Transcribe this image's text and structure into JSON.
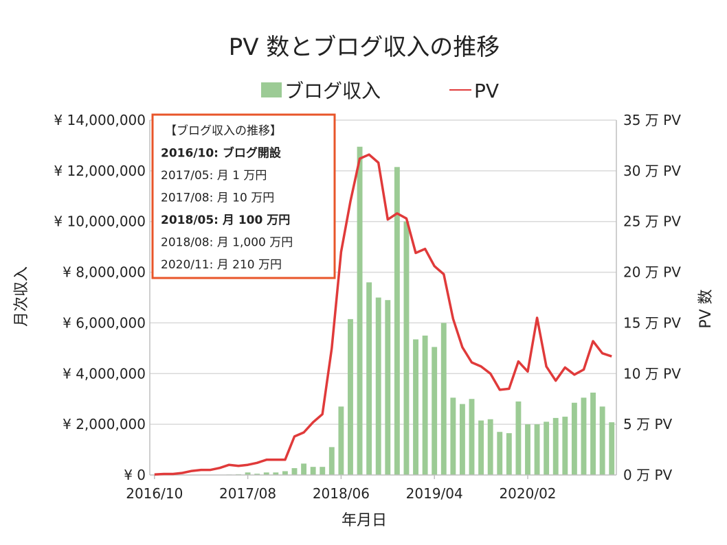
{
  "chart_data": {
    "type": "bar",
    "title": "PV 数とブログ収入の推移",
    "xlabel": "年月日",
    "ylabel_left": "月次収入",
    "ylabel_right": "PV 数",
    "ylim_left": [
      0,
      14000000
    ],
    "ylim_right": [
      0,
      35
    ],
    "grid": true,
    "legend_position": "top",
    "x_tick_labels": [
      "2016/10",
      "2017/08",
      "2018/06",
      "2019/04",
      "2020/02"
    ],
    "x_tick_indices": [
      0,
      10,
      20,
      30,
      40
    ],
    "y_left_ticks": [
      {
        "value": 0,
        "label": "¥ 0"
      },
      {
        "value": 2000000,
        "label": "¥ 2,000,000"
      },
      {
        "value": 4000000,
        "label": "¥ 4,000,000"
      },
      {
        "value": 6000000,
        "label": "¥ 6,000,000"
      },
      {
        "value": 8000000,
        "label": "¥ 8,000,000"
      },
      {
        "value": 10000000,
        "label": "¥ 10,000,000"
      },
      {
        "value": 12000000,
        "label": "¥ 12,000,000"
      },
      {
        "value": 14000000,
        "label": "¥ 14,000,000"
      }
    ],
    "y_right_ticks": [
      {
        "value": 0,
        "label": "0 万 PV"
      },
      {
        "value": 5,
        "label": "5 万 PV"
      },
      {
        "value": 10,
        "label": "10 万 PV"
      },
      {
        "value": 15,
        "label": "15 万 PV"
      },
      {
        "value": 20,
        "label": "20 万 PV"
      },
      {
        "value": 25,
        "label": "25 万 PV"
      },
      {
        "value": 30,
        "label": "30 万 PV"
      },
      {
        "value": 35,
        "label": "35 万 PV"
      }
    ],
    "series": [
      {
        "name": "ブログ収入",
        "type": "bar",
        "axis": "left",
        "color": "#9ccb95",
        "values": [
          0,
          0,
          0,
          0,
          0,
          0,
          0,
          10000,
          20000,
          30000,
          100000,
          50000,
          100000,
          100000,
          150000,
          270000,
          450000,
          320000,
          320000,
          1100000,
          2700000,
          6150000,
          12950000,
          7600000,
          7000000,
          6900000,
          12150000,
          10000000,
          5350000,
          5500000,
          5050000,
          6000000,
          3050000,
          2800000,
          3000000,
          2150000,
          2200000,
          1700000,
          1650000,
          2900000,
          2000000,
          2000000,
          2100000,
          2250000,
          2300000,
          2850000,
          3050000,
          3250000,
          2700000,
          2080000
        ]
      },
      {
        "name": "PV",
        "type": "line",
        "axis": "right",
        "color": "#e03a3a",
        "values": [
          0.05,
          0.1,
          0.1,
          0.2,
          0.4,
          0.5,
          0.5,
          0.7,
          1.0,
          0.9,
          1.0,
          1.2,
          1.5,
          1.5,
          1.5,
          3.8,
          4.2,
          5.2,
          6.0,
          12.5,
          22.0,
          27.0,
          31.2,
          31.6,
          30.8,
          25.2,
          25.8,
          25.3,
          21.9,
          22.3,
          20.6,
          19.8,
          15.4,
          12.6,
          11.1,
          10.7,
          10.0,
          8.4,
          8.5,
          11.2,
          10.2,
          15.5,
          10.7,
          9.3,
          10.6,
          9.9,
          10.4,
          13.2,
          12.0,
          11.7
        ]
      }
    ],
    "annotation_box": {
      "lines": [
        {
          "text": "【ブログ収入の推移】",
          "bold": false
        },
        {
          "text": "2016/10: ブログ開設",
          "bold": true
        },
        {
          "text": "2017/05: 月 1 万円",
          "bold": false
        },
        {
          "text": "2017/08: 月 10 万円",
          "bold": false
        },
        {
          "text": "2018/05: 月 100 万円",
          "bold": true
        },
        {
          "text": "2018/08: 月 1,000 万円",
          "bold": false
        },
        {
          "text": "2020/11: 月 210 万円",
          "bold": false
        }
      ],
      "border_color": "#e8552a"
    },
    "colors": {
      "grid": "#d9d9d9",
      "axis": "#bfbfbf"
    }
  }
}
